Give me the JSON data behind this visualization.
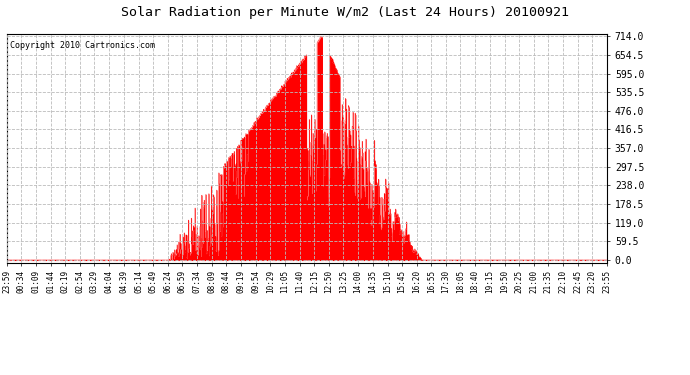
{
  "title": "Solar Radiation per Minute W/m2 (Last 24 Hours) 20100921",
  "copyright_text": "Copyright 2010 Cartronics.com",
  "fill_color": "#ff0000",
  "line_color": "#ff0000",
  "background_color": "#ffffff",
  "grid_color": "#aaaaaa",
  "y_min": 0.0,
  "y_max": 714.0,
  "y_ticks": [
    0.0,
    59.5,
    119.0,
    178.5,
    238.0,
    297.5,
    357.0,
    416.5,
    476.0,
    535.5,
    595.0,
    654.5,
    714.0
  ],
  "num_points": 1441,
  "x_tick_labels": [
    "23:59",
    "00:34",
    "01:09",
    "01:44",
    "02:19",
    "02:54",
    "03:29",
    "04:04",
    "04:39",
    "05:14",
    "05:49",
    "06:24",
    "06:59",
    "07:34",
    "08:09",
    "08:44",
    "09:19",
    "09:54",
    "10:29",
    "11:05",
    "11:40",
    "12:15",
    "12:50",
    "13:25",
    "14:00",
    "14:35",
    "15:10",
    "15:45",
    "16:20",
    "16:55",
    "17:30",
    "18:05",
    "18:40",
    "19:15",
    "19:50",
    "20:25",
    "21:00",
    "21:35",
    "22:10",
    "22:45",
    "23:20",
    "23:55"
  ]
}
